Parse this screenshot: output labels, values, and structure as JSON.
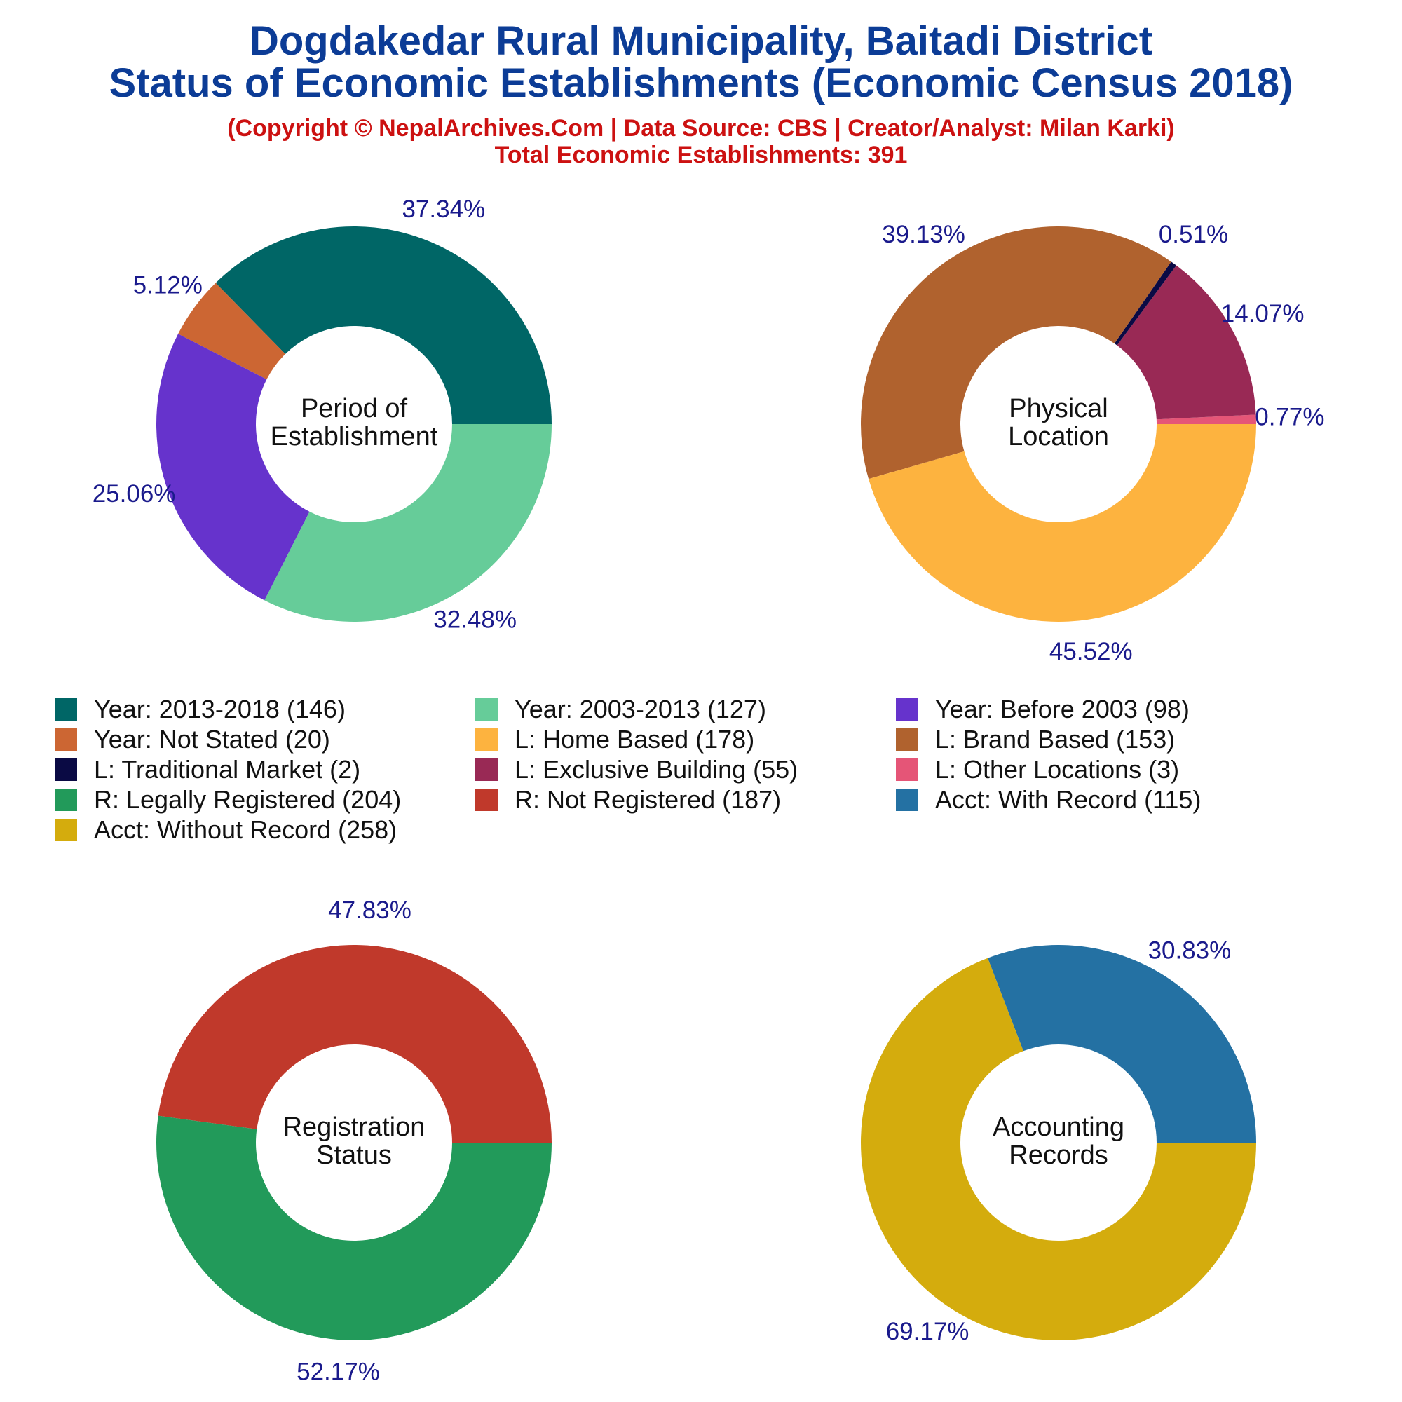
{
  "title_line1": "Dogdakedar Rural Municipality, Baitadi District",
  "title_line2": "Status of Economic Establishments (Economic Census 2018)",
  "copyright": "(Copyright © NepalArchives.Com | Data Source: CBS | Creator/Analyst: Milan Karki)",
  "total": "Total Economic Establishments: 391",
  "colors": {
    "title": "#0c3c96",
    "subtitle": "#cc1111",
    "pct_label": "#1a1a8c"
  },
  "chart_data": [
    {
      "type": "pie",
      "center_label": [
        "Period of",
        "Establishment"
      ],
      "slices": [
        {
          "label": "Year: 2013-2018",
          "count": 146,
          "pct": "37.34%",
          "color": "#006666"
        },
        {
          "label": "Year: Not Stated",
          "count": 20,
          "pct": "5.12%",
          "color": "#cc6633"
        },
        {
          "label": "Year: Before 2003",
          "count": 98,
          "pct": "25.06%",
          "color": "#6633cc"
        },
        {
          "label": "Year: 2003-2013",
          "count": 127,
          "pct": "32.48%",
          "color": "#66cc99"
        }
      ]
    },
    {
      "type": "pie",
      "center_label": [
        "Physical",
        "Location"
      ],
      "slices": [
        {
          "label": "L: Other Locations",
          "count": 3,
          "pct": "0.77%",
          "color": "#e55577"
        },
        {
          "label": "L: Exclusive Building",
          "count": 55,
          "pct": "14.07%",
          "color": "#992955"
        },
        {
          "label": "L: Traditional Market",
          "count": 2,
          "pct": "0.51%",
          "color": "#0a0a44"
        },
        {
          "label": "L: Brand Based",
          "count": 153,
          "pct": "39.13%",
          "color": "#b0622e"
        },
        {
          "label": "L: Home Based",
          "count": 178,
          "pct": "45.52%",
          "color": "#fdb33f"
        }
      ]
    },
    {
      "type": "pie",
      "center_label": [
        "Registration",
        "Status"
      ],
      "slices": [
        {
          "label": "R: Not Registered",
          "count": 187,
          "pct": "47.83%",
          "color": "#c0392b"
        },
        {
          "label": "R: Legally Registered",
          "count": 204,
          "pct": "52.17%",
          "color": "#229a5a"
        }
      ]
    },
    {
      "type": "pie",
      "center_label": [
        "Accounting",
        "Records"
      ],
      "slices": [
        {
          "label": "Acct: With Record",
          "count": 115,
          "pct": "30.83%",
          "color": "#2471a3"
        },
        {
          "label": "Acct: Without Record",
          "count": 258,
          "pct": "69.17%",
          "color": "#d4ac0d"
        }
      ]
    }
  ],
  "legend": [
    {
      "text": "Year: 2013-2018 (146)",
      "color": "#006666"
    },
    {
      "text": "Year: 2003-2013 (127)",
      "color": "#66cc99"
    },
    {
      "text": "Year: Before 2003 (98)",
      "color": "#6633cc"
    },
    {
      "text": "Year: Not Stated (20)",
      "color": "#cc6633"
    },
    {
      "text": "L: Home Based (178)",
      "color": "#fdb33f"
    },
    {
      "text": "L: Brand Based (153)",
      "color": "#b0622e"
    },
    {
      "text": "L: Traditional Market (2)",
      "color": "#0a0a44"
    },
    {
      "text": "L: Exclusive Building (55)",
      "color": "#992955"
    },
    {
      "text": "L: Other Locations (3)",
      "color": "#e55577"
    },
    {
      "text": "R: Legally Registered (204)",
      "color": "#229a5a"
    },
    {
      "text": "R: Not Registered (187)",
      "color": "#c0392b"
    },
    {
      "text": "Acct: With Record (115)",
      "color": "#2471a3"
    },
    {
      "text": "Acct: Without Record (258)",
      "color": "#d4ac0d"
    }
  ]
}
